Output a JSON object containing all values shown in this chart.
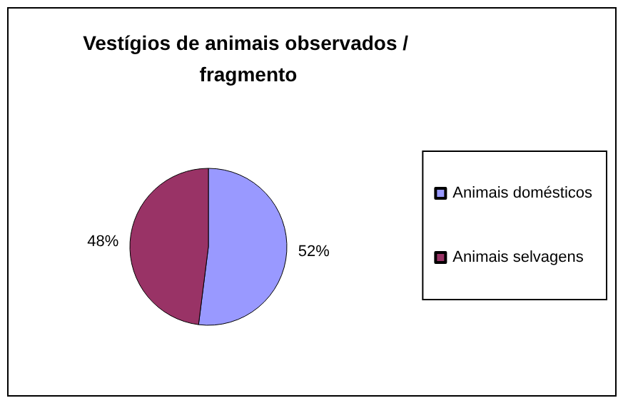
{
  "chart_data": {
    "type": "pie",
    "title": "Vestígios de animais observados / fragmento",
    "categories": [
      "Animais domésticos",
      "Animais selvagens"
    ],
    "values": [
      52,
      48
    ],
    "colors": [
      "#9999ff",
      "#993366"
    ],
    "value_labels": [
      "52%",
      "48%"
    ],
    "legend": "right"
  }
}
